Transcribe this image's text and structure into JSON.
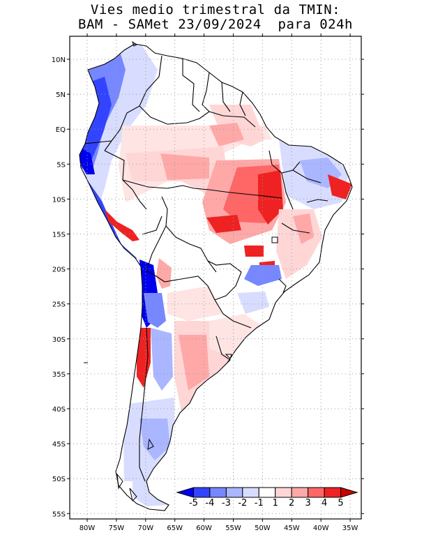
{
  "title": {
    "line1": "Vies medio trimestral da TMIN:",
    "line2": "BAM - SAMet 23/09/2024  para 024h"
  },
  "axes": {
    "lat_labels": [
      "10N",
      "5N",
      "EQ",
      "5S",
      "10S",
      "15S",
      "20S",
      "25S",
      "30S",
      "35S",
      "40S",
      "45S",
      "50S",
      "55S"
    ],
    "lon_labels": [
      "80W",
      "75W",
      "70W",
      "65W",
      "60W",
      "55W",
      "50W",
      "45W",
      "40W",
      "35W"
    ]
  },
  "colorbar": {
    "labels": [
      "-5",
      "-4",
      "-3",
      "-2",
      "-1",
      "1",
      "2",
      "3",
      "4",
      "5"
    ],
    "colors": [
      "#0000ee",
      "#3344ff",
      "#7788ff",
      "#aab6ff",
      "#d8ddff",
      "#ffffff",
      "#ffd6d6",
      "#ffa8a8",
      "#ff6666",
      "#ee2222",
      "#cc0000"
    ]
  },
  "map_colors": {
    "land_neutral": "#ffffff",
    "ocean": "#ffffff",
    "grid": "#999999",
    "border": "#000000"
  }
}
